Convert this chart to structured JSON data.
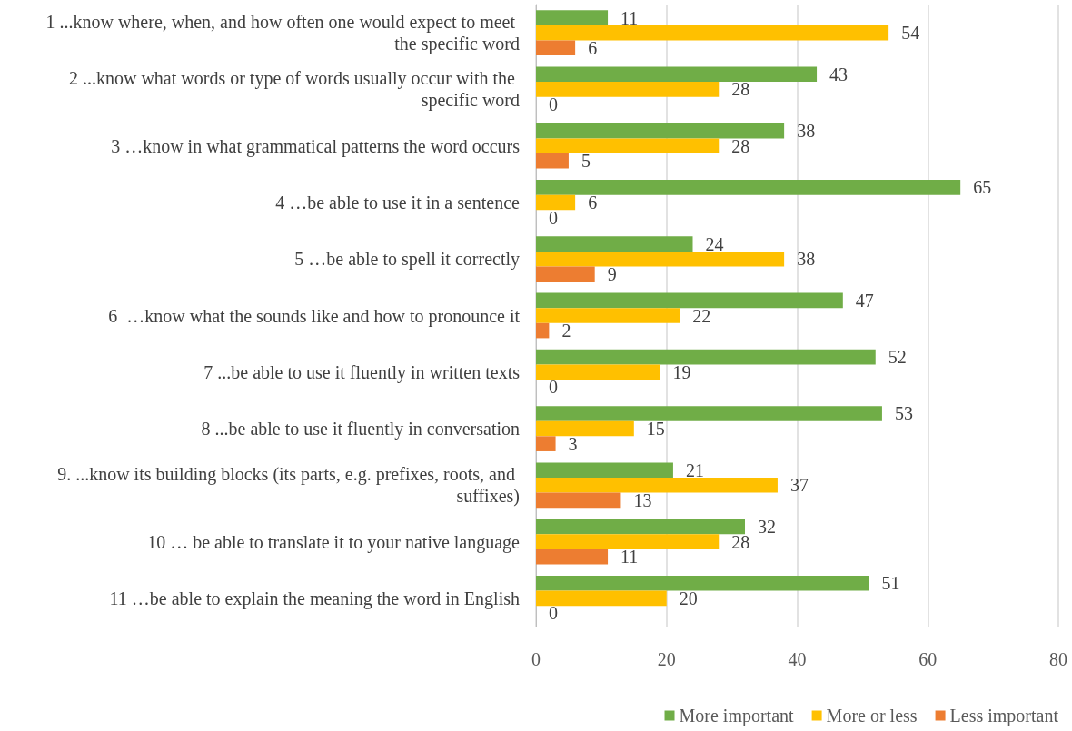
{
  "chart_data": {
    "type": "bar",
    "orientation": "horizontal",
    "categories": [
      "1 ...know where, when, and how often one would expect to meet the specific word",
      "2 ...know what words or type of words usually occur with the specific word",
      "3 …know in what grammatical patterns the word occurs",
      "4 …be able to use it in a sentence",
      "5 …be able to spell it correctly",
      "6  …know what the sounds like and how to pronounce it",
      "7 ...be able to use it fluently in written texts",
      "8 ...be able to use it fluently in conversation",
      "9. ...know its building blocks (its parts, e.g. prefixes, roots, and suffixes)",
      "10 … be able to translate it to your native language",
      "11 …be able to explain the meaning the word in English"
    ],
    "series": [
      {
        "name": "More important",
        "color": "#70ad47",
        "values": [
          11,
          43,
          38,
          65,
          24,
          47,
          52,
          53,
          21,
          32,
          51
        ]
      },
      {
        "name": "More or less",
        "color": "#ffc000",
        "values": [
          54,
          28,
          28,
          6,
          38,
          22,
          19,
          15,
          37,
          28,
          20
        ]
      },
      {
        "name": "Less important",
        "color": "#ed7d31",
        "values": [
          6,
          0,
          5,
          0,
          9,
          2,
          0,
          3,
          13,
          11,
          0
        ]
      }
    ],
    "xlim": [
      0,
      80
    ],
    "xticks": [
      0,
      20,
      40,
      60,
      80
    ],
    "grid": "x",
    "legend": "bottom right",
    "data_labels": true
  }
}
